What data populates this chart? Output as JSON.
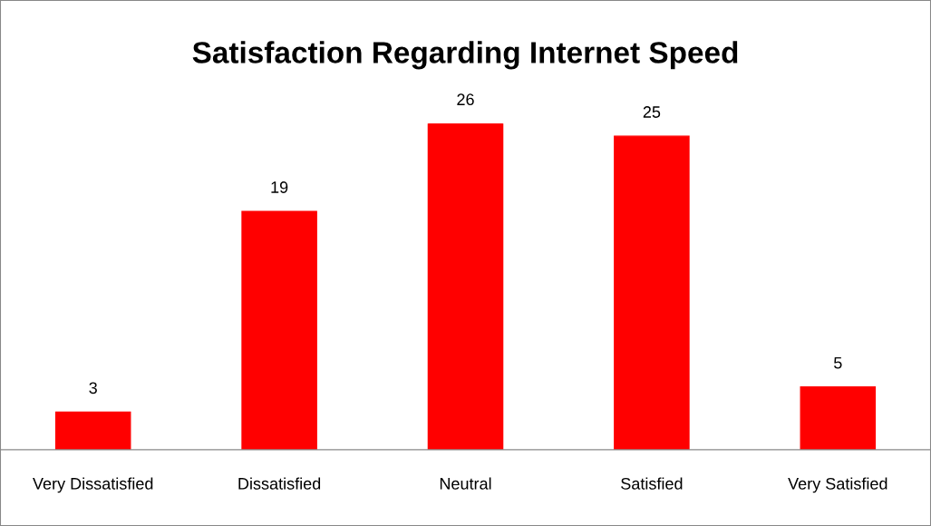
{
  "chart_data": {
    "type": "bar",
    "title": "Satisfaction Regarding Internet Speed",
    "categories": [
      "Very Dissatisfied",
      "Dissatisfied",
      "Neutral",
      "Satisfied",
      "Very Satisfied"
    ],
    "values": [
      3,
      19,
      26,
      25,
      5
    ],
    "color": "#ff0000",
    "data_labels": true,
    "grid": false,
    "legend": false
  }
}
